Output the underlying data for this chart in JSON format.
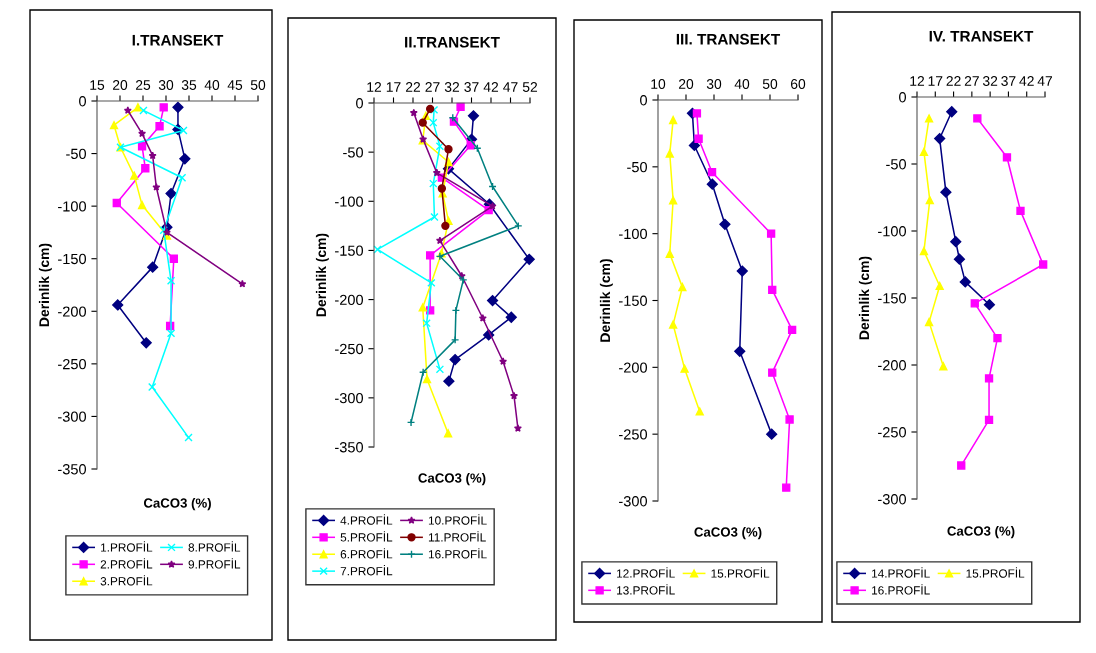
{
  "chart_data": [
    {
      "type": "line",
      "title": "I.TRANSEKT",
      "xlabel": "CaCO3 (%)",
      "ylabel": "Derinlik (cm)",
      "xlim": [
        15,
        50
      ],
      "xticks": [
        15,
        20,
        25,
        30,
        35,
        40,
        45,
        50
      ],
      "ylim": [
        -350,
        0
      ],
      "yticks": [
        -350,
        -300,
        -250,
        -200,
        -150,
        -100,
        -50,
        0
      ],
      "grid": false,
      "legend": "bottom",
      "series": [
        {
          "name": "1.PROFİL",
          "color": "#000080",
          "marker": "diamond",
          "x": [
            32.6,
            32.6,
            34.1,
            31.1,
            30.2,
            27.1,
            19.5,
            25.7
          ],
          "values": [
            -6,
            -27,
            -55,
            -88,
            -120,
            -158,
            -194,
            -230
          ]
        },
        {
          "name": "2.PROFİL",
          "color": "#ff00ff",
          "marker": "square",
          "x": [
            29.5,
            28.6,
            24.8,
            25.5,
            19.3,
            31.7,
            30.9
          ],
          "values": [
            -6,
            -24,
            -43,
            -64,
            -97,
            -150,
            -214
          ]
        },
        {
          "name": "3.PROFİL",
          "color": "#ffff00",
          "marker": "triangle",
          "x": [
            23.9,
            18.7,
            20.1,
            23.1,
            24.8,
            30.2
          ],
          "values": [
            -6,
            -23,
            -44,
            -71,
            -99,
            -128
          ]
        },
        {
          "name": "8.PROFİL",
          "color": "#00ffff",
          "marker": "cross",
          "x": [
            25.1,
            33.8,
            20.1,
            33.5,
            29.5,
            31.1,
            31.1,
            27.0,
            34.9
          ],
          "values": [
            -9,
            -28,
            -44,
            -73,
            -123,
            -171,
            -221,
            -272,
            -320
          ]
        },
        {
          "name": "9.PROFİL",
          "color": "#800080",
          "marker": "star",
          "x": [
            21.7,
            24.8,
            27.1,
            27.9,
            30.2,
            46.6
          ],
          "values": [
            -9,
            -31,
            -52,
            -82,
            -125,
            -174
          ]
        }
      ]
    },
    {
      "type": "line",
      "title": "II.TRANSEKT",
      "xlabel": "CaCO3 (%)",
      "ylabel": "Derinlik (cm)",
      "xlim": [
        12,
        52
      ],
      "xticks": [
        12,
        17,
        22,
        27,
        32,
        37,
        42,
        47,
        52
      ],
      "ylim": [
        -350,
        0
      ],
      "yticks": [
        -350,
        -300,
        -250,
        -200,
        -150,
        -100,
        -50,
        0
      ],
      "grid": false,
      "legend": "bottom",
      "series": [
        {
          "name": "4.PROFİL",
          "color": "#000080",
          "marker": "diamond",
          "x": [
            37.5,
            37.0,
            31.1,
            41.6,
            51.8,
            42.4,
            47.2,
            41.4,
            32.8,
            31.2
          ],
          "values": [
            -13,
            -37,
            -67,
            -103,
            -159,
            -201,
            -218,
            -236,
            -261,
            -283
          ]
        },
        {
          "name": "5.PROFİL",
          "color": "#ff00ff",
          "marker": "square",
          "x": [
            34.2,
            32.5,
            36.8,
            29.4,
            41.4,
            26.4,
            26.4
          ],
          "values": [
            -4,
            -19,
            -43,
            -76,
            -109,
            -155,
            -211
          ]
        },
        {
          "name": "6.PROFİL",
          "color": "#ffff00",
          "marker": "triangle",
          "x": [
            25.3,
            24.5,
            31.1,
            29.6,
            31.1,
            29.3,
            24.5,
            25.6,
            31.0
          ],
          "values": [
            -13,
            -38,
            -60,
            -92,
            -120,
            -153,
            -208,
            -281,
            -336
          ]
        },
        {
          "name": "7.PROFİL",
          "color": "#00ffff",
          "marker": "cross",
          "x": [
            27.4,
            27.2,
            28.9,
            27.2,
            27.5,
            12.9,
            26.7,
            25.5,
            28.9
          ],
          "values": [
            -7,
            -20,
            -44,
            -82,
            -116,
            -149,
            -183,
            -224,
            -271
          ]
        },
        {
          "name": "10.PROFİL",
          "color": "#800080",
          "marker": "star",
          "x": [
            22.2,
            24.6,
            28.1,
            42.4,
            28.9,
            34.5,
            39.9,
            45.1,
            47.9,
            48.9
          ],
          "values": [
            -10,
            -37,
            -71,
            -105,
            -140,
            -176,
            -219,
            -263,
            -298,
            -331
          ]
        },
        {
          "name": "11.PROFİL",
          "color": "#800000",
          "marker": "circle",
          "x": [
            26.4,
            24.5,
            31.1,
            29.4,
            30.3
          ],
          "values": [
            -6,
            -20,
            -47,
            -87,
            -125
          ]
        },
        {
          "name": "16.PROFİL",
          "color": "#008080",
          "marker": "plus",
          "x": [
            32.2,
            38.5,
            42.4,
            49.0,
            28.9,
            34.9,
            33.0,
            32.8,
            24.6,
            21.5
          ],
          "values": [
            -15,
            -46,
            -85,
            -125,
            -156,
            -180,
            -211,
            -241,
            -274,
            -325
          ]
        }
      ]
    },
    {
      "type": "line",
      "title": "III. TRANSEKT",
      "xlabel": "CaCO3 (%)",
      "ylabel": "Derinlik (cm)",
      "xlim": [
        10,
        60
      ],
      "xticks": [
        10,
        20,
        30,
        40,
        50,
        60
      ],
      "ylim": [
        -300,
        0
      ],
      "yticks": [
        -300,
        -250,
        -200,
        -150,
        -100,
        -50,
        0
      ],
      "grid": false,
      "legend": "bottom",
      "series": [
        {
          "name": "12.PROFİL",
          "color": "#000080",
          "marker": "diamond",
          "x": [
            22.3,
            23.0,
            29.4,
            33.9,
            40.1,
            39.2,
            50.6
          ],
          "values": [
            -10,
            -34,
            -63,
            -93,
            -128,
            -188,
            -250
          ]
        },
        {
          "name": "13.PROFİL",
          "color": "#ff00ff",
          "marker": "square",
          "x": [
            23.9,
            24.5,
            29.3,
            50.4,
            50.8,
            57.9,
            50.8,
            57.0,
            55.8
          ],
          "values": [
            -10,
            -29,
            -54,
            -100,
            -142,
            -172,
            -204,
            -239,
            -290
          ]
        },
        {
          "name": "15.PROFİL",
          "color": "#ffff00",
          "marker": "triangle",
          "x": [
            15.4,
            14.2,
            15.4,
            14.2,
            18.7,
            15.4,
            19.5,
            24.9
          ],
          "values": [
            -15,
            -40,
            -75,
            -115,
            -140,
            -168,
            -201,
            -233
          ]
        }
      ]
    },
    {
      "type": "line",
      "title": "IV. TRANSEKT",
      "xlabel": "CaCO3 (%)",
      "ylabel": "Derinlik (cm)",
      "xlim": [
        12,
        47
      ],
      "xticks": [
        12,
        17,
        22,
        27,
        32,
        37,
        42,
        47
      ],
      "ylim": [
        -300,
        0
      ],
      "yticks": [
        -300,
        -250,
        -200,
        -150,
        -100,
        -50,
        0
      ],
      "grid": false,
      "legend": "bottom",
      "series": [
        {
          "name": "14.PROFİL",
          "color": "#000080",
          "marker": "diamond",
          "x": [
            21.5,
            18.2,
            19.9,
            22.6,
            23.6,
            25.2,
            31.8
          ],
          "values": [
            -11,
            -31,
            -71,
            -108,
            -121,
            -138,
            -155
          ]
        },
        {
          "name": "16.PROFİL",
          "color": "#ff00ff",
          "marker": "square",
          "x": [
            28.5,
            36.6,
            40.3,
            46.5,
            27.8,
            34.0,
            31.7,
            31.7,
            24.1
          ],
          "values": [
            -16,
            -45,
            -85,
            -125,
            -154,
            -180,
            -210,
            -241,
            -275
          ]
        },
        {
          "name": "15.PROFİL",
          "color": "#ffff00",
          "marker": "triangle",
          "x": [
            15.3,
            13.9,
            15.5,
            13.9,
            18.2,
            15.3,
            19.2
          ],
          "values": [
            -16,
            -41,
            -77,
            -115,
            -141,
            -168,
            -201
          ]
        }
      ]
    }
  ]
}
